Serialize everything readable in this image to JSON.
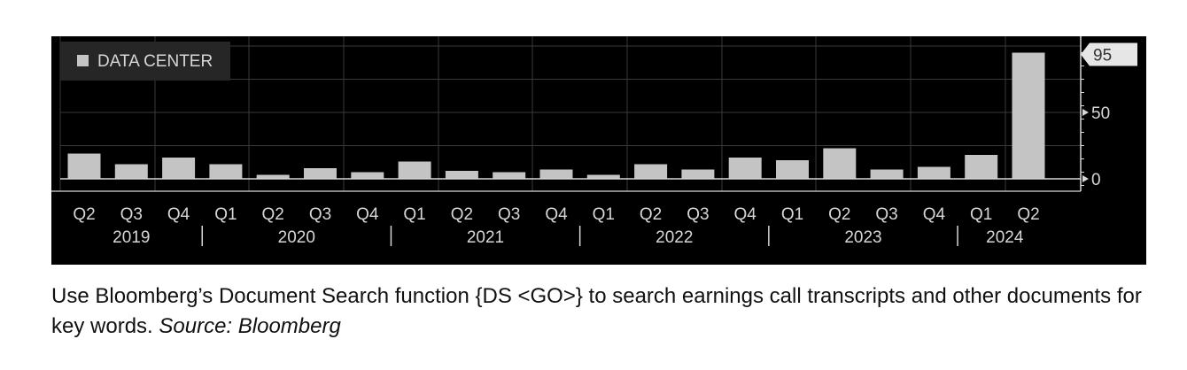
{
  "chart_data": {
    "type": "bar",
    "legend": {
      "label": "DATA CENTER",
      "placement": "top-left"
    },
    "categories": [
      "Q2",
      "Q3",
      "Q4",
      "Q1",
      "Q2",
      "Q3",
      "Q4",
      "Q1",
      "Q2",
      "Q3",
      "Q4",
      "Q1",
      "Q2",
      "Q3",
      "Q4",
      "Q1",
      "Q2",
      "Q3",
      "Q4",
      "Q1",
      "Q2"
    ],
    "years": [
      {
        "label": "2019",
        "start": 0,
        "end": 2
      },
      {
        "label": "2020",
        "start": 3,
        "end": 6
      },
      {
        "label": "2021",
        "start": 7,
        "end": 10
      },
      {
        "label": "2022",
        "start": 11,
        "end": 14
      },
      {
        "label": "2023",
        "start": 15,
        "end": 18
      },
      {
        "label": "2024",
        "start": 19,
        "end": 20
      }
    ],
    "series": [
      {
        "values": [
          19,
          11,
          16,
          11,
          3,
          8,
          5,
          13,
          6,
          5,
          7,
          3,
          11,
          7,
          16,
          14,
          23,
          7,
          9,
          18,
          95
        ]
      }
    ],
    "ylim": [
      -7,
      102
    ],
    "yticks": [
      0,
      50
    ],
    "last_value_label": "95",
    "grid": true,
    "colors": {
      "bar": "#c4c4c4",
      "background": "#000000",
      "grid": "#3a3a3a",
      "axis": "#d8d8d8",
      "text": "#d6d6d6",
      "legend_bg": "#262626"
    }
  },
  "caption": {
    "text": "Use Bloomberg’s Document Search function {DS <GO>} to search earnings call transcripts and other documents for key words.",
    "source": "Source: Bloomberg"
  }
}
